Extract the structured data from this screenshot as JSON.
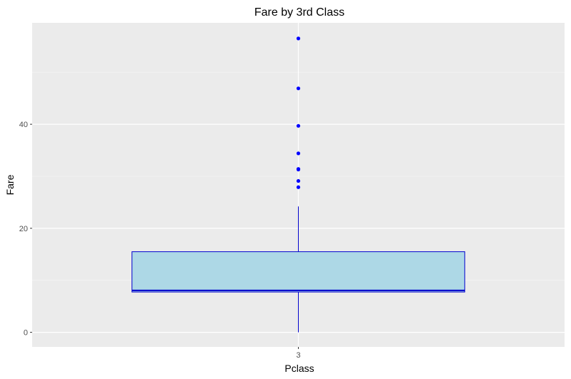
{
  "chart_data": {
    "type": "box",
    "title": "Fare by 3rd Class",
    "xlabel": "Pclass",
    "ylabel": "Fare",
    "categories": [
      "3"
    ],
    "ylim": [
      -2.8,
      59.5
    ],
    "y_ticks": [
      0,
      20,
      40
    ],
    "grid": true,
    "legend": "none",
    "boxes": [
      {
        "category": "3",
        "whisker_low": 0,
        "q1": 7.75,
        "median": 8.05,
        "q3": 15.5,
        "whisker_high": 24.2,
        "outliers": [
          27.9,
          29.1,
          31.3,
          31.4,
          34.4,
          39.7,
          46.9,
          56.5
        ]
      }
    ],
    "colors": {
      "panel_background": "#ebebeb",
      "grid_major": "#ffffff",
      "grid_minor": "#f5f5f5",
      "box_fill": "#add8e6",
      "box_outline": "#0000cd",
      "outlier": "#0000ff"
    }
  }
}
